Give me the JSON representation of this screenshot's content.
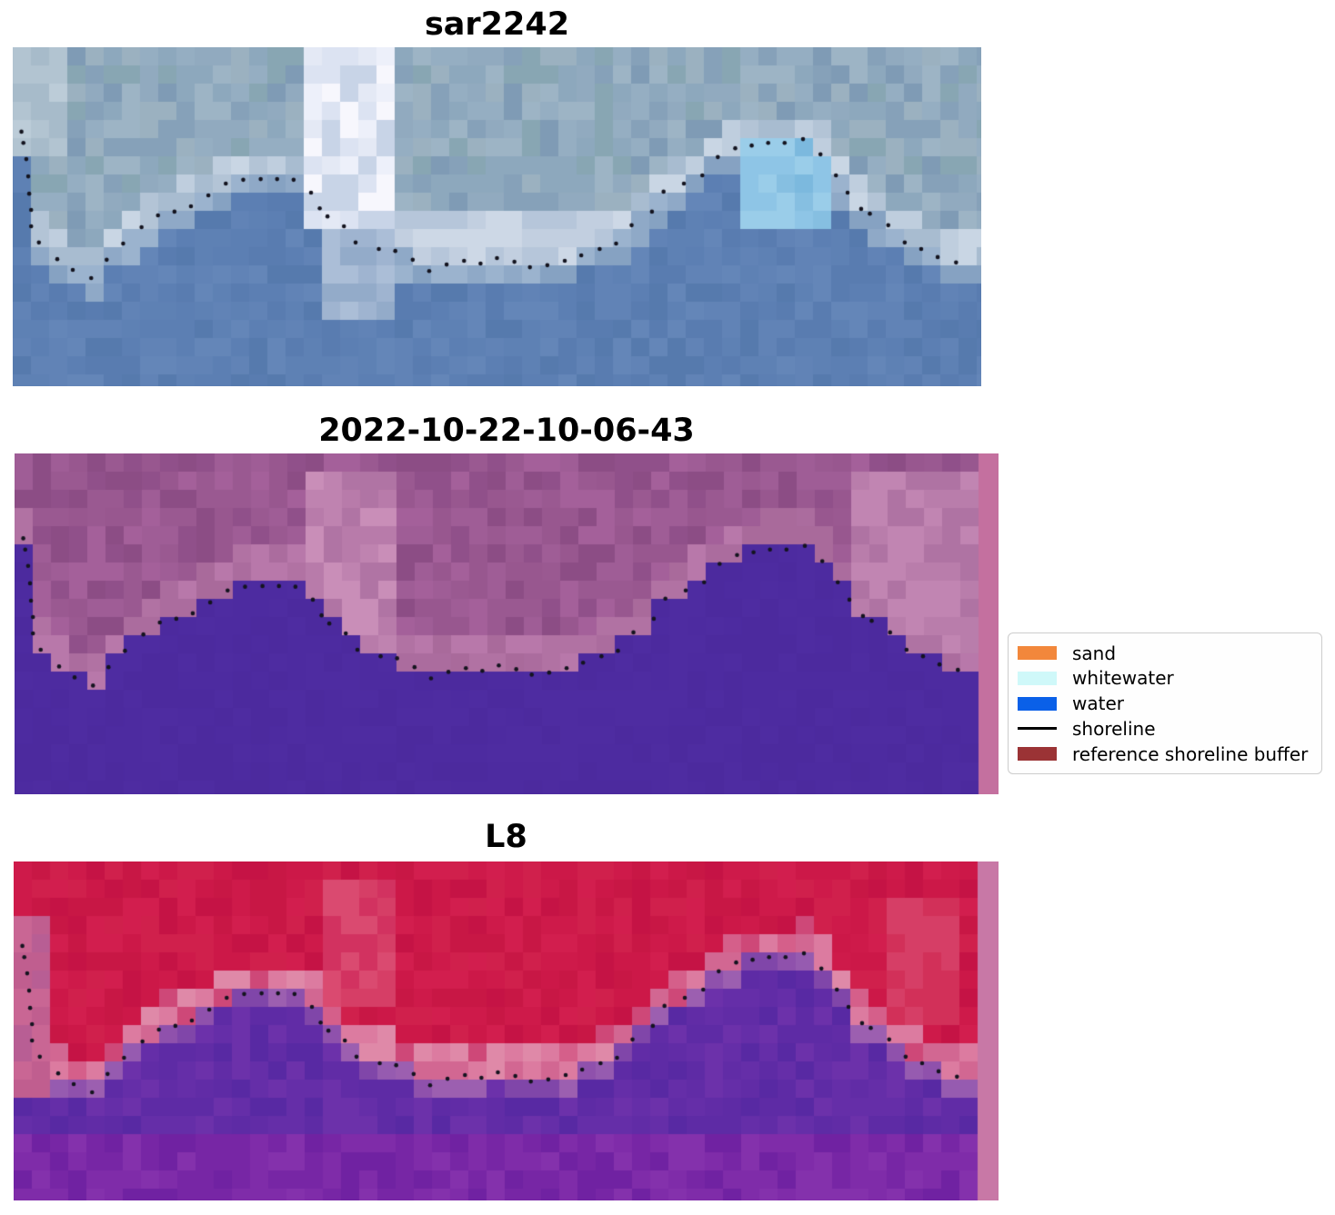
{
  "chart_data": {
    "type": "heatmap",
    "figure_kind": "satellite shoreline-detection comparison, 3 stacked pixelated image panels with shoreline dots and a classification legend",
    "background": "#ffffff",
    "panels": [
      {
        "title": "sar2242",
        "kind": "sar_rgb_image",
        "render": {
          "cell": 20,
          "seed": 7,
          "geo_width": 1065,
          "upper": [
            "#8DA8BD",
            "#95AEC2",
            "#9DB4C5",
            "#86A1B9",
            "#7F9BB5",
            "#91AABF",
            "#88A6B3",
            "#9BB1C0"
          ],
          "upper_band": {
            "range": 0.085,
            "colors": [
              "#B3C4D6",
              "#BFCEDE",
              "#A8BCD0",
              "#C9D6E4"
            ]
          },
          "lower": [
            "#5C7FB3",
            "#597CB0",
            "#6183B6",
            "#567AAD",
            "#6486B8",
            "#5E81B4"
          ],
          "lower_band": {
            "range": 0.06,
            "colors": [
              "#8FA9C7",
              "#9BB3CE",
              "#86A2C2"
            ]
          },
          "patches": [
            {
              "x0": 0.308,
              "x1": 0.398,
              "y0": 0.0,
              "y1": 0.56,
              "colors": [
                "#EDF0FA",
                "#F7F7FD",
                "#DCE3F2",
                "#C8D4E7",
                "#E4E9F5"
              ]
            },
            {
              "x0": 0.315,
              "x1": 0.385,
              "y0": 0.56,
              "y1": 0.78,
              "colors": [
                "#9FB4D0",
                "#ABBED7",
                "#93ABC9"
              ]
            },
            {
              "x0": 0.745,
              "x1": 0.845,
              "y0": 0.27,
              "y1": 0.53,
              "region": "lower",
              "colors": [
                "#7CB9DE",
                "#8EC5E6",
                "#9ACDE9",
                "#86BFE1"
              ]
            },
            {
              "x0": 0.39,
              "x1": 0.64,
              "y0": 0.49,
              "y1": 0.7,
              "region": "upper",
              "colors": [
                "#C2CFE0",
                "#CDD8E6",
                "#B6C6DA"
              ]
            },
            {
              "x0": 0.0,
              "x1": 0.055,
              "y0": 0.0,
              "y1": 0.34,
              "colors": [
                "#B2C4D1",
                "#A7BBCA",
                "#BCCCD8"
              ]
            }
          ]
        }
      },
      {
        "title": "2022-10-22-10-06-43",
        "kind": "classified_overlay_image",
        "render": {
          "cell": 20,
          "seed": 13,
          "geo_width": 1065,
          "upper": [
            "#98578F",
            "#9F5D96",
            "#90508A",
            "#A4609A",
            "#8C4D85",
            "#9A5991"
          ],
          "upper_band": {
            "range": 0.1,
            "colors": [
              "#B172A3",
              "#AB6C9E",
              "#B878AA",
              "#A96A9B"
            ]
          },
          "lower": [
            "#4D2BA0",
            "#4C2A9E",
            "#4E2CA1"
          ],
          "patches": [
            {
              "x0": 0.305,
              "x1": 0.4,
              "y0": 0.04,
              "y1": 0.6,
              "region": "upper",
              "colors": [
                "#BF83B0",
                "#B87BAA",
                "#C98EB8",
                "#B074A4"
              ]
            },
            {
              "x0": 0.87,
              "x1": 0.995,
              "y0": 0.04,
              "y1": 0.58,
              "region": "upper",
              "colors": [
                "#B97DAB",
                "#C185B2",
                "#AF73A3"
              ]
            },
            {
              "x0": 0.997,
              "x1": 2.0,
              "y0": 0.0,
              "y1": 1.0,
              "colors": [
                "#C4709F"
              ]
            }
          ]
        }
      },
      {
        "title": "L8",
        "kind": "classified_overlay_image",
        "render": {
          "cell": 20,
          "seed": 21,
          "geo_width": 1065,
          "upper": [
            "#CC1848",
            "#D21E4E",
            "#C51345",
            "#D0204C",
            "#C81745",
            "#CE1A4A"
          ],
          "upper_band": {
            "range": 0.09,
            "colors": [
              "#D55F8A",
              "#DC7BA0",
              "#CE4878",
              "#DF89A8",
              "#D26792"
            ]
          },
          "lower": [
            "#5E2BA5",
            "#652EA8",
            "#5829A3",
            "#6C31AA",
            "#612CA6"
          ],
          "lower_band": {
            "range": 0.045,
            "colors": [
              "#8F51AC",
              "#9C5FB0",
              "#8046A9",
              "#965BB0"
            ]
          },
          "lower_deep": {
            "ny_start": 0.78,
            "colors": [
              "#7726A5",
              "#7F2CA9",
              "#7022A2",
              "#8431AC"
            ]
          },
          "patches": [
            {
              "x0": 0.0,
              "x1": 0.03,
              "y0": 0.15,
              "y1": 0.72,
              "colors": [
                "#C05E8F",
                "#B85E94",
                "#C96694"
              ]
            },
            {
              "x0": 0.31,
              "x1": 0.4,
              "y0": 0.05,
              "y1": 0.45,
              "region": "upper",
              "colors": [
                "#D63E66",
                "#DA4A70",
                "#D23260"
              ]
            },
            {
              "x0": 0.9,
              "x1": 0.97,
              "y0": 0.1,
              "y1": 0.5,
              "region": "upper",
              "colors": [
                "#D23059",
                "#D63E66"
              ]
            },
            {
              "x0": 0.997,
              "x1": 2.0,
              "y0": 0.0,
              "y1": 1.0,
              "colors": [
                "#C878A6"
              ]
            }
          ]
        }
      }
    ],
    "shoreline": {
      "label": "shoreline",
      "dot_color": "#14141F",
      "dot_radius": 2.3,
      "points_normalized": [
        [
          0.009,
          0.249
        ],
        [
          0.011,
          0.282
        ],
        [
          0.014,
          0.33
        ],
        [
          0.016,
          0.381
        ],
        [
          0.017,
          0.432
        ],
        [
          0.019,
          0.48
        ],
        [
          0.019,
          0.528
        ],
        [
          0.027,
          0.576
        ],
        [
          0.046,
          0.625
        ],
        [
          0.062,
          0.657
        ],
        [
          0.081,
          0.681
        ],
        [
          0.097,
          0.627
        ],
        [
          0.114,
          0.579
        ],
        [
          0.133,
          0.531
        ],
        [
          0.15,
          0.496
        ],
        [
          0.167,
          0.485
        ],
        [
          0.184,
          0.469
        ],
        [
          0.202,
          0.437
        ],
        [
          0.22,
          0.402
        ],
        [
          0.238,
          0.391
        ],
        [
          0.256,
          0.389
        ],
        [
          0.273,
          0.389
        ],
        [
          0.29,
          0.391
        ],
        [
          0.308,
          0.429
        ],
        [
          0.317,
          0.475
        ],
        [
          0.325,
          0.499
        ],
        [
          0.342,
          0.528
        ],
        [
          0.354,
          0.576
        ],
        [
          0.378,
          0.595
        ],
        [
          0.395,
          0.601
        ],
        [
          0.413,
          0.627
        ],
        [
          0.43,
          0.66
        ],
        [
          0.448,
          0.641
        ],
        [
          0.466,
          0.63
        ],
        [
          0.483,
          0.638
        ],
        [
          0.5,
          0.622
        ],
        [
          0.518,
          0.633
        ],
        [
          0.534,
          0.649
        ],
        [
          0.552,
          0.643
        ],
        [
          0.57,
          0.63
        ],
        [
          0.587,
          0.614
        ],
        [
          0.606,
          0.595
        ],
        [
          0.623,
          0.579
        ],
        [
          0.639,
          0.525
        ],
        [
          0.66,
          0.485
        ],
        [
          0.672,
          0.426
        ],
        [
          0.693,
          0.402
        ],
        [
          0.712,
          0.378
        ],
        [
          0.728,
          0.324
        ],
        [
          0.746,
          0.298
        ],
        [
          0.763,
          0.29
        ],
        [
          0.78,
          0.282
        ],
        [
          0.797,
          0.282
        ],
        [
          0.816,
          0.271
        ],
        [
          0.834,
          0.316
        ],
        [
          0.85,
          0.378
        ],
        [
          0.862,
          0.429
        ],
        [
          0.876,
          0.477
        ],
        [
          0.885,
          0.491
        ],
        [
          0.904,
          0.525
        ],
        [
          0.921,
          0.576
        ],
        [
          0.938,
          0.595
        ],
        [
          0.955,
          0.619
        ],
        [
          0.974,
          0.635
        ]
      ]
    },
    "legend": {
      "position": "center right",
      "items": [
        {
          "label": "sand",
          "color": "#F2873B",
          "marker": "patch"
        },
        {
          "label": "whitewater",
          "color": "#CFF8F9",
          "marker": "patch"
        },
        {
          "label": "water",
          "color": "#0A60E8",
          "marker": "patch"
        },
        {
          "label": "shoreline",
          "color": "#000000",
          "marker": "line"
        },
        {
          "label": "reference shoreline buffer",
          "color": "#9B3335",
          "marker": "patch"
        }
      ]
    }
  }
}
